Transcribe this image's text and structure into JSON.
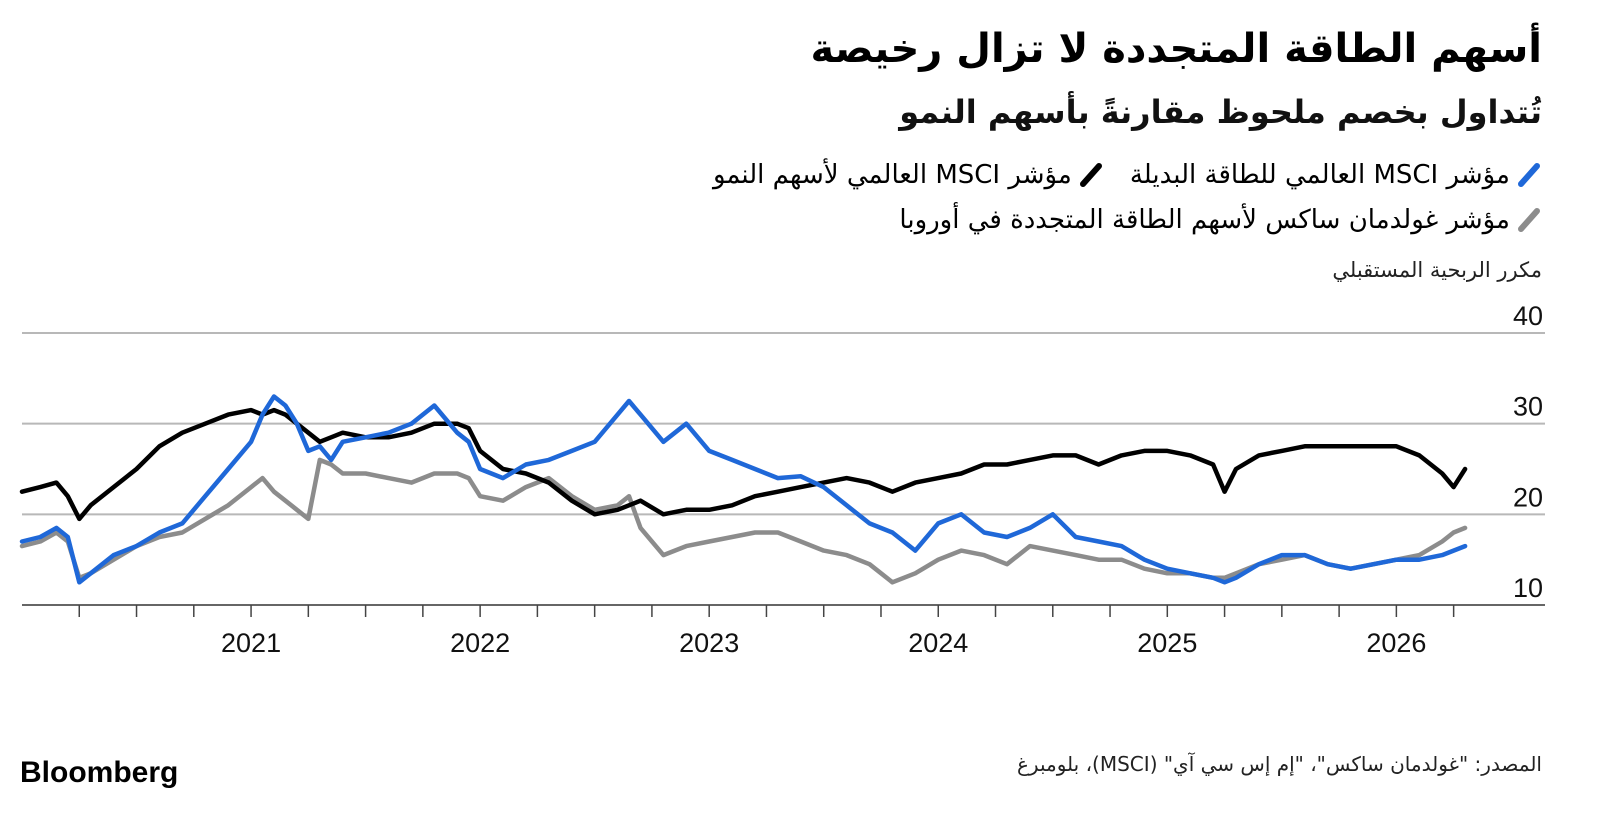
{
  "header": {
    "title": "أسهم الطاقة المتجددة لا تزال رخيصة",
    "subtitle": "تُتداول بخصم ملحوظ مقارنةً بأسهم النمو"
  },
  "legend": {
    "items": [
      {
        "label": "مؤشر MSCI العالمي للطاقة البديلة",
        "color": "#1f68d8"
      },
      {
        "label": "مؤشر MSCI العالمي لأسهم النمو",
        "color": "#000000"
      },
      {
        "label": "مؤشر غولدمان ساكس لأسهم الطاقة المتجددة في أوروبا",
        "color": "#8c8c8c"
      }
    ]
  },
  "footer": {
    "source": "المصدر: \"غولدمان ساكس\"، \"إم إس سي آي\" (MSCI)، بلومبرغ",
    "brand": "Bloomberg"
  },
  "chart_data": {
    "type": "line",
    "title": "أسهم الطاقة المتجددة لا تزال رخيصة",
    "subtitle": "تُتداول بخصم ملحوظ مقارنةً بأسهم النمو",
    "ylabel": "مكرر الربحية المستقبلي",
    "xlabel": "",
    "ylim": [
      10,
      40
    ],
    "xlim": [
      2020.0,
      2026.4
    ],
    "yticks": [
      10,
      20,
      30,
      40
    ],
    "xtick_labels": [
      "2021",
      "2022",
      "2023",
      "2024",
      "2025",
      "2026"
    ],
    "grid": true,
    "legend_position": "top-right",
    "x": [
      2020.0,
      2020.08,
      2020.15,
      2020.2,
      2020.25,
      2020.3,
      2020.4,
      2020.5,
      2020.6,
      2020.7,
      2020.8,
      2020.9,
      2021.0,
      2021.05,
      2021.1,
      2021.15,
      2021.2,
      2021.25,
      2021.3,
      2021.35,
      2021.4,
      2021.5,
      2021.6,
      2021.7,
      2021.8,
      2021.9,
      2021.95,
      2022.0,
      2022.1,
      2022.2,
      2022.3,
      2022.4,
      2022.5,
      2022.6,
      2022.65,
      2022.7,
      2022.8,
      2022.9,
      2023.0,
      2023.1,
      2023.2,
      2023.3,
      2023.4,
      2023.5,
      2023.6,
      2023.7,
      2023.8,
      2023.9,
      2024.0,
      2024.1,
      2024.2,
      2024.3,
      2024.4,
      2024.5,
      2024.6,
      2024.7,
      2024.8,
      2024.9,
      2025.0,
      2025.1,
      2025.2,
      2025.25,
      2025.3,
      2025.4,
      2025.5,
      2025.6,
      2025.7,
      2025.8,
      2025.9,
      2026.0,
      2026.1,
      2026.2,
      2026.25,
      2026.3
    ],
    "series": [
      {
        "name": "مؤشر MSCI العالمي للطاقة البديلة",
        "color": "#1f68d8",
        "values": [
          17,
          17.5,
          18.5,
          17.5,
          12.5,
          13.5,
          15.5,
          16.5,
          18,
          19,
          22,
          25,
          28,
          31,
          33,
          32,
          30,
          27,
          27.5,
          26,
          28,
          28.5,
          29,
          30,
          32,
          29,
          28,
          25,
          24,
          25.5,
          26,
          27,
          28,
          31,
          32.5,
          31,
          28,
          30,
          27,
          26,
          25,
          24,
          24.2,
          23,
          21,
          19,
          18,
          16,
          19,
          20,
          18,
          17.5,
          18.5,
          20,
          17.5,
          17,
          16.5,
          15,
          14,
          13.5,
          13,
          12.5,
          13,
          14.5,
          15.5,
          15.5,
          14.5,
          14,
          14.5,
          15,
          15,
          15.5,
          16,
          16.5
        ]
      },
      {
        "name": "مؤشر MSCI العالمي لأسهم النمو",
        "color": "#000000",
        "values": [
          22.5,
          23,
          23.5,
          22,
          19.5,
          21,
          23,
          25,
          27.5,
          29,
          30,
          31,
          31.5,
          31,
          31.5,
          31,
          30,
          29,
          28,
          28.5,
          29,
          28.5,
          28.5,
          29,
          30,
          30,
          29.5,
          27,
          25,
          24.5,
          23.5,
          21.5,
          20,
          20.5,
          21,
          21.5,
          20,
          20.5,
          20.5,
          21,
          22,
          22.5,
          23,
          23.5,
          24,
          23.5,
          22.5,
          23.5,
          24,
          24.5,
          25.5,
          25.5,
          26,
          26.5,
          26.5,
          25.5,
          26.5,
          27,
          27,
          26.5,
          25.5,
          22.5,
          25,
          26.5,
          27,
          27.5,
          27.5,
          27.5,
          27.5,
          27.5,
          26.5,
          24.5,
          23,
          25
        ]
      },
      {
        "name": "مؤشر غولدمان ساكس لأسهم الطاقة المتجددة في أوروبا",
        "color": "#8c8c8c",
        "values": [
          16.5,
          17,
          18,
          17,
          13,
          13.5,
          15,
          16.5,
          17.5,
          18,
          19.5,
          21,
          23,
          24,
          22.5,
          21.5,
          20.5,
          19.5,
          26,
          25.5,
          24.5,
          24.5,
          24,
          23.5,
          24.5,
          24.5,
          24,
          22,
          21.5,
          23,
          24,
          22,
          20.5,
          21,
          22,
          18.5,
          15.5,
          16.5,
          17,
          17.5,
          18,
          18,
          17,
          16,
          15.5,
          14.5,
          12.5,
          13.5,
          15,
          16,
          15.5,
          14.5,
          16.5,
          16,
          15.5,
          15,
          15,
          14,
          13.5,
          13.5,
          13,
          13,
          13.5,
          14.5,
          15,
          15.5,
          14.5,
          14,
          14.5,
          15,
          15.5,
          17,
          18,
          18.5
        ]
      }
    ]
  }
}
